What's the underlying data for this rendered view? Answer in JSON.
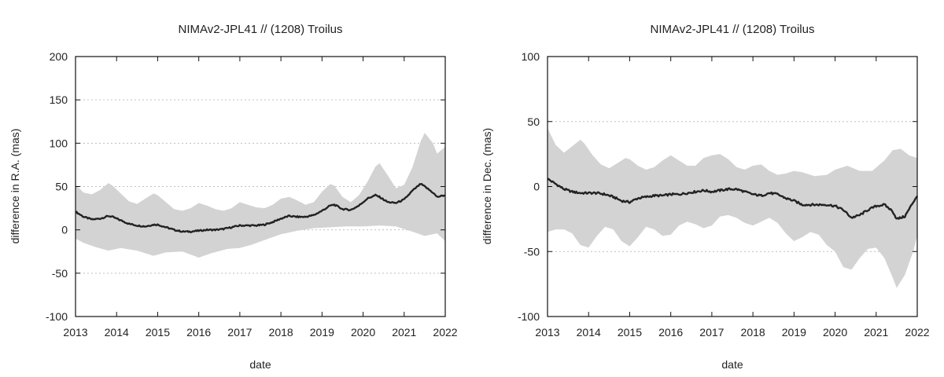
{
  "colors": {
    "band": "#d3d3d3",
    "line": "#222222"
  },
  "chart_data": [
    {
      "type": "line",
      "title": "NIMAv2-JPL41 // (1208) Troilus",
      "xlabel": "date",
      "ylabel": "difference in R.A. (mas)",
      "xlim": [
        2013,
        2022
      ],
      "ylim": [
        -100,
        200
      ],
      "xticks": [
        2013,
        2014,
        2015,
        2016,
        2017,
        2018,
        2019,
        2020,
        2021,
        2022
      ],
      "yticks": [
        -100,
        -50,
        0,
        50,
        100,
        150,
        200
      ],
      "grid": "horizontal dashed",
      "series": [
        {
          "name": "uncertainty band upper",
          "x": [
            2013.0,
            2013.2,
            2013.4,
            2013.6,
            2013.8,
            2013.9,
            2014.1,
            2014.3,
            2014.5,
            2014.7,
            2014.9,
            2015.0,
            2015.2,
            2015.4,
            2015.6,
            2015.8,
            2016.0,
            2016.2,
            2016.4,
            2016.6,
            2016.8,
            2017.0,
            2017.2,
            2017.4,
            2017.6,
            2017.8,
            2018.0,
            2018.2,
            2018.4,
            2018.6,
            2018.8,
            2019.0,
            2019.2,
            2019.3,
            2019.5,
            2019.7,
            2019.9,
            2020.1,
            2020.3,
            2020.4,
            2020.6,
            2020.8,
            2021.0,
            2021.2,
            2021.4,
            2021.5,
            2021.7,
            2021.8,
            2022.0
          ],
          "values": [
            52,
            43,
            41,
            46,
            54,
            51,
            42,
            33,
            30,
            36,
            42,
            40,
            32,
            24,
            22,
            25,
            31,
            28,
            24,
            22,
            25,
            32,
            29,
            26,
            25,
            29,
            36,
            38,
            34,
            29,
            32,
            44,
            53,
            51,
            38,
            32,
            40,
            55,
            73,
            77,
            63,
            48,
            52,
            72,
            102,
            112,
            100,
            88,
            96
          ]
        },
        {
          "name": "uncertainty band lower",
          "x": [
            2013.0,
            2013.2,
            2013.5,
            2013.8,
            2014.1,
            2014.5,
            2014.9,
            2015.2,
            2015.6,
            2016.0,
            2016.3,
            2016.7,
            2017.0,
            2017.3,
            2017.7,
            2018.0,
            2018.4,
            2018.8,
            2019.2,
            2019.6,
            2020.0,
            2020.4,
            2020.8,
            2021.2,
            2021.5,
            2021.8,
            2022.0
          ],
          "values": [
            -10,
            -15,
            -20,
            -24,
            -21,
            -24,
            -30,
            -26,
            -25,
            -32,
            -27,
            -22,
            -21,
            -17,
            -10,
            -5,
            -1,
            2,
            3,
            4,
            4,
            5,
            4,
            -2,
            -7,
            -4,
            -13
          ]
        },
        {
          "name": "difference",
          "x": [
            2013.0,
            2013.2,
            2013.4,
            2013.6,
            2013.8,
            2013.9,
            2014.1,
            2014.3,
            2014.5,
            2014.7,
            2014.9,
            2015.0,
            2015.2,
            2015.4,
            2015.6,
            2015.8,
            2016.0,
            2016.2,
            2016.4,
            2016.6,
            2016.8,
            2017.0,
            2017.2,
            2017.4,
            2017.6,
            2017.8,
            2018.0,
            2018.2,
            2018.4,
            2018.6,
            2018.8,
            2019.0,
            2019.2,
            2019.3,
            2019.5,
            2019.7,
            2019.9,
            2020.1,
            2020.3,
            2020.4,
            2020.6,
            2020.8,
            2021.0,
            2021.2,
            2021.4,
            2021.5,
            2021.7,
            2021.8,
            2022.0
          ],
          "values": [
            21,
            15,
            12,
            13,
            16,
            15,
            11,
            7,
            5,
            4,
            6,
            6,
            3,
            0,
            -2,
            -2,
            -1,
            0,
            0,
            1,
            3,
            5,
            5,
            5,
            6,
            9,
            13,
            16,
            15,
            15,
            17,
            22,
            28,
            29,
            24,
            23,
            28,
            36,
            40,
            38,
            32,
            31,
            35,
            45,
            53,
            50,
            43,
            38,
            40
          ]
        }
      ]
    },
    {
      "type": "line",
      "title": "NIMAv2-JPL41 // (1208) Troilus",
      "xlabel": "date",
      "ylabel": "difference in Dec. (mas)",
      "xlim": [
        2013,
        2022
      ],
      "ylim": [
        -100,
        100
      ],
      "xticks": [
        2013,
        2014,
        2015,
        2016,
        2017,
        2018,
        2019,
        2020,
        2021,
        2022
      ],
      "yticks": [
        -100,
        -50,
        0,
        50,
        100
      ],
      "grid": "horizontal dashed",
      "series": [
        {
          "name": "uncertainty band upper",
          "x": [
            2013.0,
            2013.2,
            2013.4,
            2013.6,
            2013.8,
            2013.9,
            2014.1,
            2014.3,
            2014.5,
            2014.7,
            2014.9,
            2015.0,
            2015.2,
            2015.4,
            2015.6,
            2015.8,
            2016.0,
            2016.2,
            2016.4,
            2016.6,
            2016.8,
            2017.0,
            2017.2,
            2017.4,
            2017.6,
            2017.8,
            2018.0,
            2018.2,
            2018.4,
            2018.6,
            2018.8,
            2019.0,
            2019.2,
            2019.5,
            2019.8,
            2020.0,
            2020.3,
            2020.6,
            2020.9,
            2021.2,
            2021.4,
            2021.6,
            2021.8,
            2022.0
          ],
          "values": [
            45,
            32,
            26,
            31,
            36,
            33,
            24,
            17,
            14,
            18,
            22,
            21,
            16,
            13,
            15,
            20,
            24,
            20,
            16,
            16,
            22,
            24,
            25,
            21,
            15,
            13,
            16,
            17,
            12,
            9,
            10,
            12,
            11,
            8,
            9,
            13,
            16,
            12,
            12,
            20,
            28,
            29,
            24,
            22
          ]
        },
        {
          "name": "uncertainty band lower",
          "x": [
            2013.0,
            2013.2,
            2013.4,
            2013.6,
            2013.8,
            2014.0,
            2014.2,
            2014.4,
            2014.6,
            2014.8,
            2015.0,
            2015.2,
            2015.4,
            2015.6,
            2015.8,
            2016.0,
            2016.2,
            2016.4,
            2016.6,
            2016.8,
            2017.0,
            2017.2,
            2017.4,
            2017.6,
            2017.8,
            2018.0,
            2018.2,
            2018.4,
            2018.6,
            2018.8,
            2019.0,
            2019.2,
            2019.4,
            2019.6,
            2019.8,
            2020.0,
            2020.2,
            2020.4,
            2020.6,
            2020.8,
            2021.0,
            2021.2,
            2021.4,
            2021.5,
            2021.7,
            2021.9,
            2022.0
          ],
          "values": [
            -35,
            -33,
            -33,
            -36,
            -45,
            -47,
            -38,
            -31,
            -33,
            -42,
            -46,
            -39,
            -31,
            -33,
            -38,
            -37,
            -30,
            -27,
            -29,
            -32,
            -30,
            -23,
            -22,
            -24,
            -28,
            -30,
            -27,
            -24,
            -28,
            -36,
            -42,
            -39,
            -35,
            -37,
            -45,
            -50,
            -62,
            -64,
            -55,
            -48,
            -47,
            -55,
            -70,
            -78,
            -68,
            -50,
            -38
          ]
        },
        {
          "name": "difference",
          "x": [
            2013.0,
            2013.2,
            2013.4,
            2013.6,
            2013.8,
            2014.0,
            2014.2,
            2014.4,
            2014.6,
            2014.8,
            2015.0,
            2015.2,
            2015.4,
            2015.6,
            2015.8,
            2016.0,
            2016.2,
            2016.4,
            2016.6,
            2016.8,
            2017.0,
            2017.2,
            2017.4,
            2017.6,
            2017.8,
            2018.0,
            2018.2,
            2018.4,
            2018.6,
            2018.8,
            2019.0,
            2019.2,
            2019.4,
            2019.6,
            2019.8,
            2020.0,
            2020.2,
            2020.4,
            2020.6,
            2020.8,
            2021.0,
            2021.2,
            2021.4,
            2021.5,
            2021.7,
            2021.9,
            2022.0
          ],
          "values": [
            6,
            2,
            -2,
            -4,
            -5,
            -5,
            -5,
            -6,
            -8,
            -11,
            -12,
            -9,
            -8,
            -7,
            -7,
            -6,
            -6,
            -5,
            -4,
            -3,
            -4,
            -3,
            -2,
            -2,
            -4,
            -6,
            -7,
            -5,
            -6,
            -9,
            -11,
            -14,
            -14,
            -14,
            -14,
            -15,
            -18,
            -24,
            -22,
            -18,
            -15,
            -14,
            -19,
            -25,
            -23,
            -12,
            -7
          ]
        }
      ]
    }
  ]
}
